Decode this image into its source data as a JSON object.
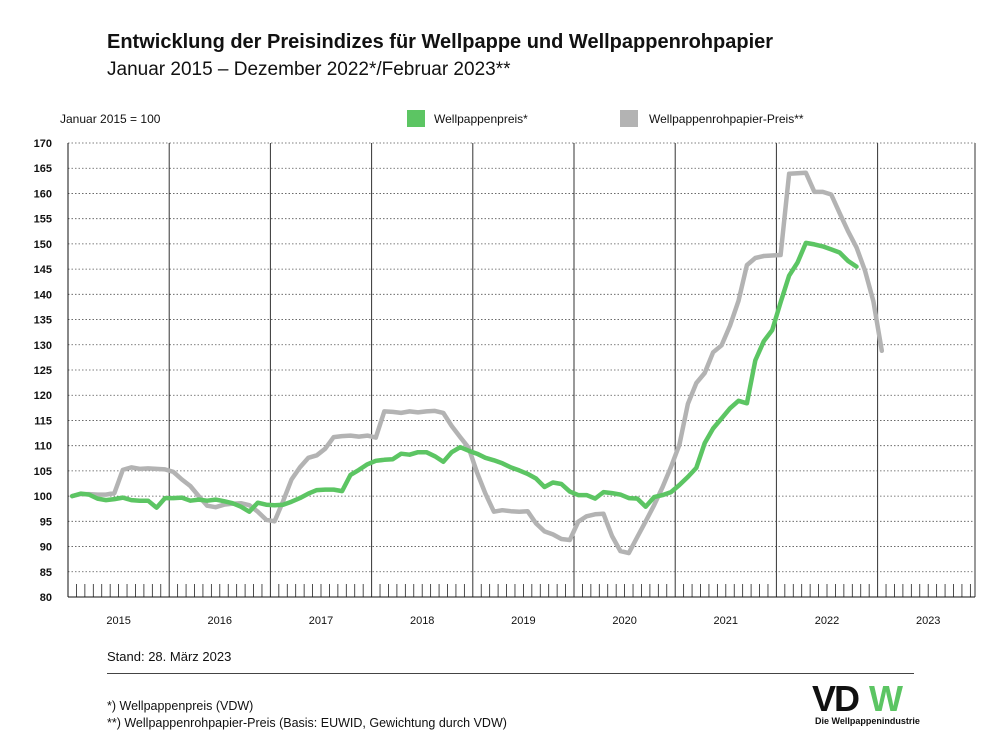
{
  "title": "Entwicklung der Preisindizes für Wellpappe und Wellpappenrohpapier",
  "subtitle": "Januar 2015 – Dezember 2022*/Februar 2023**",
  "stand": "Stand: 28. März 2023",
  "footnotes": [
    "*) Wellpappenpreis (VDW)",
    "**) Wellpappenrohpapier-Preis (Basis: EUWID, Gewichtung durch VDW)"
  ],
  "logo": {
    "text": "VDW",
    "tagline": "Die Wellpappenindustrie",
    "color": "#5cc563"
  },
  "chart_data": {
    "type": "line",
    "ylabel": "Januar 2015 = 100",
    "ylim": [
      80,
      170
    ],
    "yticks": [
      170,
      165,
      160,
      155,
      150,
      145,
      140,
      135,
      130,
      125,
      120,
      115,
      110,
      105,
      100,
      95,
      90,
      85,
      80
    ],
    "years": [
      "2015",
      "2016",
      "2017",
      "2018",
      "2019",
      "2020",
      "2021",
      "2022",
      "2023"
    ],
    "x_unit": "months from January 2015 (monthly values)",
    "grid": true,
    "legend_position": "top",
    "series": [
      {
        "name": "Wellpappenpreis*",
        "color": "#5cc563",
        "values": [
          100,
          100.5,
          100.3,
          99.5,
          99.2,
          99.4,
          99.7,
          99.2,
          99.1,
          99.1,
          97.7,
          99.6,
          99.6,
          99.7,
          99.1,
          99.3,
          99.1,
          99.3,
          99.0,
          98.6,
          97.9,
          96.9,
          98.7,
          98.3,
          98.2,
          98.3,
          98.9,
          99.6,
          100.5,
          101.2,
          101.3,
          101.3,
          101.0,
          104.2,
          105.2,
          106.3,
          107.0,
          107.2,
          107.3,
          108.4,
          108.2,
          108.7,
          108.7,
          107.9,
          106.8,
          108.7,
          109.7,
          109.0,
          108.4,
          107.6,
          107.1,
          106.5,
          105.7,
          105.1,
          104.4,
          103.5,
          101.8,
          102.7,
          102.4,
          100.9,
          100.2,
          100.2,
          99.5,
          100.8,
          100.6,
          100.3,
          99.6,
          99.5,
          97.9,
          99.8,
          100.2,
          100.8,
          102.2,
          103.8,
          105.6,
          110.5,
          113.4,
          115.4,
          117.4,
          118.9,
          118.4,
          126.9,
          130.7,
          132.9,
          138.4,
          143.7,
          146.3,
          150.2,
          149.9,
          149.5,
          148.9,
          148.3,
          146.6,
          145.5
        ]
      },
      {
        "name": "Wellpappenrohpapier-Preis**",
        "color": "#b3b3b3",
        "values": [
          100,
          100.4,
          100.4,
          100.3,
          100.3,
          100.6,
          105.2,
          105.7,
          105.4,
          105.5,
          105.4,
          105.3,
          104.8,
          103.3,
          102.0,
          100.0,
          98.1,
          97.8,
          98.3,
          98.5,
          98.6,
          98.2,
          96.9,
          95.3,
          95.0,
          99.0,
          103.3,
          105.7,
          107.6,
          108.1,
          109.4,
          111.7,
          111.9,
          112.0,
          111.8,
          112.0,
          111.6,
          116.8,
          116.7,
          116.5,
          116.8,
          116.6,
          116.8,
          116.9,
          116.5,
          113.9,
          111.7,
          109.6,
          104.7,
          100.5,
          96.9,
          97.2,
          97.0,
          96.9,
          97.0,
          94.6,
          93.0,
          92.4,
          91.5,
          91.3,
          94.9,
          96.0,
          96.4,
          96.5,
          92.1,
          89.1,
          88.7,
          91.9,
          95.0,
          98.2,
          101.8,
          105.8,
          110.2,
          118.3,
          122.4,
          124.4,
          128.5,
          129.9,
          133.8,
          138.7,
          145.8,
          147.2,
          147.6,
          147.7,
          147.8,
          163.9,
          164.0,
          164.1,
          160.3,
          160.3,
          159.8,
          156.1,
          152.5,
          149.3,
          144.7,
          138.6,
          128.8
        ]
      }
    ]
  }
}
